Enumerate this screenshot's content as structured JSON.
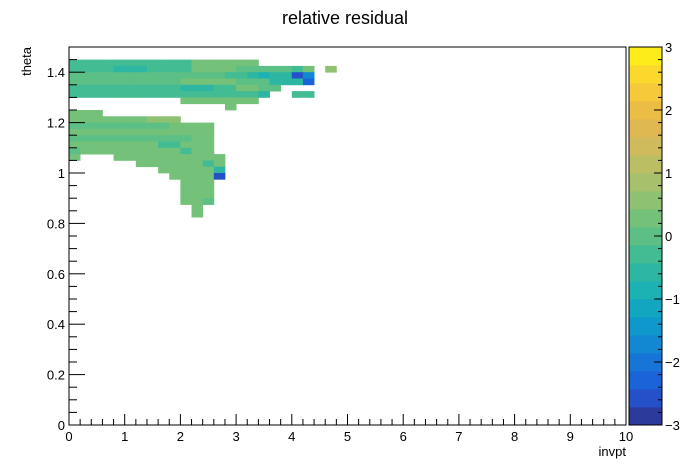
{
  "chart_data": {
    "type": "heatmap",
    "title": "relative residual",
    "xlabel": "invpt",
    "ylabel": "theta",
    "xlim": [
      0,
      10
    ],
    "ylim": [
      0,
      1.5
    ],
    "x_ticks": [
      0,
      1,
      2,
      3,
      4,
      5,
      6,
      7,
      8,
      9,
      10
    ],
    "x_tick_labels": [
      "0",
      "1",
      "2",
      "3",
      "4",
      "5",
      "6",
      "7",
      "8",
      "9",
      "10"
    ],
    "y_ticks": [
      0,
      0.2,
      0.4,
      0.6,
      0.8,
      1.0,
      1.2,
      1.4
    ],
    "y_tick_labels": [
      "0",
      "0.2",
      "0.4",
      "0.6",
      "0.8",
      "1",
      "1.2",
      "1.4"
    ],
    "colorbar": {
      "range": [
        -3,
        3
      ],
      "ticks": [
        -3,
        -2,
        -1,
        0,
        1,
        2,
        3
      ],
      "tick_labels": [
        "−3",
        "−2",
        "−1",
        "0",
        "1",
        "2",
        "3"
      ],
      "palette": [
        "#2c3a9c",
        "#2450c8",
        "#1a63d8",
        "#1675d6",
        "#1288d2",
        "#0f98cb",
        "#12a6c1",
        "#1cb1b3",
        "#2db7a3",
        "#43bc93",
        "#5cbf85",
        "#74c17a",
        "#8ec172",
        "#a6c06b",
        "#bcbe64",
        "#cfba5c",
        "#e0b852",
        "#ecbd45",
        "#f5c93a",
        "#fad92c",
        "#fdec1a"
      ]
    },
    "bin_size": {
      "x": 0.2,
      "y": 0.025
    },
    "cells": [
      [
        0.0,
        1.425,
        -0.2
      ],
      [
        0.2,
        1.425,
        -0.2
      ],
      [
        0.4,
        1.425,
        -0.2
      ],
      [
        0.6,
        1.425,
        -0.2
      ],
      [
        0.8,
        1.425,
        -0.2
      ],
      [
        1.0,
        1.425,
        -0.2
      ],
      [
        1.2,
        1.425,
        -0.2
      ],
      [
        1.4,
        1.425,
        -0.2
      ],
      [
        1.6,
        1.425,
        -0.2
      ],
      [
        1.8,
        1.425,
        -0.2
      ],
      [
        2.0,
        1.425,
        -0.2
      ],
      [
        2.2,
        1.425,
        0.2
      ],
      [
        2.4,
        1.425,
        0.2
      ],
      [
        2.6,
        1.425,
        0.2
      ],
      [
        2.8,
        1.425,
        0.2
      ],
      [
        3.0,
        1.425,
        0.2
      ],
      [
        3.2,
        1.425,
        0.2
      ],
      [
        0.0,
        1.4,
        -0.2
      ],
      [
        0.2,
        1.4,
        -0.4
      ],
      [
        0.4,
        1.4,
        -0.4
      ],
      [
        0.6,
        1.4,
        -0.4
      ],
      [
        0.8,
        1.4,
        -0.5
      ],
      [
        1.0,
        1.4,
        -0.5
      ],
      [
        1.2,
        1.4,
        -0.6
      ],
      [
        1.4,
        1.4,
        -0.3
      ],
      [
        1.6,
        1.4,
        -0.2
      ],
      [
        1.8,
        1.4,
        -0.2
      ],
      [
        2.0,
        1.4,
        -0.2
      ],
      [
        2.2,
        1.4,
        0.2
      ],
      [
        2.4,
        1.4,
        0.2
      ],
      [
        2.6,
        1.4,
        0.2
      ],
      [
        2.8,
        1.4,
        0.2
      ],
      [
        3.0,
        1.4,
        0.0
      ],
      [
        3.2,
        1.4,
        0.0
      ],
      [
        3.4,
        1.4,
        0.0
      ],
      [
        3.6,
        1.4,
        0.0
      ],
      [
        3.8,
        1.4,
        0.0
      ],
      [
        4.0,
        1.4,
        -0.3
      ],
      [
        4.2,
        1.4,
        0.3
      ],
      [
        4.6,
        1.4,
        0.7
      ],
      [
        0.0,
        1.375,
        -0.1
      ],
      [
        0.2,
        1.375,
        -0.1
      ],
      [
        0.4,
        1.375,
        -0.1
      ],
      [
        0.6,
        1.375,
        -0.1
      ],
      [
        0.8,
        1.375,
        -0.1
      ],
      [
        1.0,
        1.375,
        -0.1
      ],
      [
        1.2,
        1.375,
        -0.1
      ],
      [
        1.4,
        1.375,
        -0.1
      ],
      [
        1.6,
        1.375,
        -0.1
      ],
      [
        1.8,
        1.375,
        -0.1
      ],
      [
        2.0,
        1.375,
        -0.1
      ],
      [
        2.2,
        1.375,
        -0.1
      ],
      [
        2.4,
        1.375,
        -0.1
      ],
      [
        2.6,
        1.375,
        -0.1
      ],
      [
        2.8,
        1.375,
        -0.3
      ],
      [
        3.0,
        1.375,
        -0.3
      ],
      [
        3.2,
        1.375,
        -0.6
      ],
      [
        3.4,
        1.375,
        -0.8
      ],
      [
        3.6,
        1.375,
        -0.6
      ],
      [
        3.8,
        1.375,
        -0.6
      ],
      [
        4.0,
        1.375,
        -2.7
      ],
      [
        4.2,
        1.375,
        -1.8
      ],
      [
        0.0,
        1.35,
        0.1
      ],
      [
        0.2,
        1.35,
        0.1
      ],
      [
        0.4,
        1.35,
        0.1
      ],
      [
        0.6,
        1.35,
        0.1
      ],
      [
        0.8,
        1.35,
        0.1
      ],
      [
        1.0,
        1.35,
        0.1
      ],
      [
        1.2,
        1.35,
        0.1
      ],
      [
        1.4,
        1.35,
        0.1
      ],
      [
        1.6,
        1.35,
        0.1
      ],
      [
        1.8,
        1.35,
        0.1
      ],
      [
        2.0,
        1.35,
        0.3
      ],
      [
        2.2,
        1.35,
        0.3
      ],
      [
        2.4,
        1.35,
        0.3
      ],
      [
        2.6,
        1.35,
        0.3
      ],
      [
        2.8,
        1.35,
        0.3
      ],
      [
        3.0,
        1.35,
        0.0
      ],
      [
        3.2,
        1.35,
        0.0
      ],
      [
        3.4,
        1.35,
        0.0
      ],
      [
        3.6,
        1.35,
        -0.6
      ],
      [
        3.8,
        1.35,
        -0.6
      ],
      [
        4.0,
        1.35,
        -0.6
      ],
      [
        4.2,
        1.35,
        -2.4
      ],
      [
        0.0,
        1.325,
        -0.3
      ],
      [
        0.2,
        1.325,
        -0.3
      ],
      [
        0.4,
        1.325,
        -0.3
      ],
      [
        0.6,
        1.325,
        -0.3
      ],
      [
        0.8,
        1.325,
        -0.3
      ],
      [
        1.0,
        1.325,
        -0.3
      ],
      [
        1.2,
        1.325,
        -0.3
      ],
      [
        1.4,
        1.325,
        -0.3
      ],
      [
        1.6,
        1.325,
        -0.3
      ],
      [
        1.8,
        1.325,
        -0.3
      ],
      [
        2.0,
        1.325,
        -0.5
      ],
      [
        2.2,
        1.325,
        -0.5
      ],
      [
        2.4,
        1.325,
        -0.5
      ],
      [
        2.6,
        1.325,
        -0.3
      ],
      [
        2.8,
        1.325,
        -0.3
      ],
      [
        3.0,
        1.325,
        0.2
      ],
      [
        3.2,
        1.325,
        0.2
      ],
      [
        3.4,
        1.325,
        0.0
      ],
      [
        3.6,
        1.325,
        0.0
      ],
      [
        0.0,
        1.3,
        -0.2
      ],
      [
        0.2,
        1.3,
        -0.2
      ],
      [
        0.4,
        1.3,
        -0.2
      ],
      [
        0.6,
        1.3,
        -0.2
      ],
      [
        0.8,
        1.3,
        -0.2
      ],
      [
        1.0,
        1.3,
        -0.2
      ],
      [
        1.2,
        1.3,
        -0.2
      ],
      [
        1.4,
        1.3,
        -0.2
      ],
      [
        1.6,
        1.3,
        -0.2
      ],
      [
        1.8,
        1.3,
        -0.2
      ],
      [
        2.0,
        1.3,
        -0.2
      ],
      [
        2.2,
        1.3,
        -0.2
      ],
      [
        2.4,
        1.3,
        -0.2
      ],
      [
        2.6,
        1.3,
        -0.2
      ],
      [
        2.8,
        1.3,
        -0.2
      ],
      [
        3.0,
        1.3,
        -0.2
      ],
      [
        3.2,
        1.3,
        -0.2
      ],
      [
        3.4,
        1.3,
        -0.5
      ],
      [
        4.0,
        1.3,
        -0.2
      ],
      [
        4.2,
        1.3,
        -0.2
      ],
      [
        2.0,
        1.275,
        0.3
      ],
      [
        2.2,
        1.275,
        0.3
      ],
      [
        2.4,
        1.275,
        0.3
      ],
      [
        2.6,
        1.275,
        0.3
      ],
      [
        2.8,
        1.275,
        0.3
      ],
      [
        3.0,
        1.275,
        0.3
      ],
      [
        3.2,
        1.275,
        0.3
      ],
      [
        2.8,
        1.25,
        0.2
      ],
      [
        0.0,
        1.225,
        0.3
      ],
      [
        0.2,
        1.225,
        0.3
      ],
      [
        0.4,
        1.225,
        0.3
      ],
      [
        0.0,
        1.2,
        0.4
      ],
      [
        0.2,
        1.2,
        0.4
      ],
      [
        0.4,
        1.2,
        0.4
      ],
      [
        0.6,
        1.2,
        0.4
      ],
      [
        0.8,
        1.2,
        0.4
      ],
      [
        1.0,
        1.2,
        0.4
      ],
      [
        1.2,
        1.2,
        0.4
      ],
      [
        1.4,
        1.2,
        0.5
      ],
      [
        1.6,
        1.2,
        0.5
      ],
      [
        1.8,
        1.2,
        0.5
      ],
      [
        0.0,
        1.175,
        0.1
      ],
      [
        0.2,
        1.175,
        0.1
      ],
      [
        0.4,
        1.175,
        0.1
      ],
      [
        0.6,
        1.175,
        0.1
      ],
      [
        0.8,
        1.175,
        0.1
      ],
      [
        1.0,
        1.175,
        0.1
      ],
      [
        1.2,
        1.175,
        0.1
      ],
      [
        1.4,
        1.175,
        0.1
      ],
      [
        1.6,
        1.175,
        0.1
      ],
      [
        1.8,
        1.175,
        0.4
      ],
      [
        2.0,
        1.175,
        0.4
      ],
      [
        2.2,
        1.175,
        0.4
      ],
      [
        2.4,
        1.175,
        0.4
      ],
      [
        0.0,
        1.15,
        0.3
      ],
      [
        0.2,
        1.15,
        0.3
      ],
      [
        0.4,
        1.15,
        0.3
      ],
      [
        0.6,
        1.15,
        0.3
      ],
      [
        0.8,
        1.15,
        0.3
      ],
      [
        1.0,
        1.15,
        0.3
      ],
      [
        1.2,
        1.15,
        0.3
      ],
      [
        1.4,
        1.15,
        0.3
      ],
      [
        1.6,
        1.15,
        0.3
      ],
      [
        1.8,
        1.15,
        0.3
      ],
      [
        2.0,
        1.15,
        0.3
      ],
      [
        2.2,
        1.15,
        0.3
      ],
      [
        2.4,
        1.15,
        0.4
      ],
      [
        0.0,
        1.125,
        -0.1
      ],
      [
        0.2,
        1.125,
        -0.1
      ],
      [
        0.4,
        1.125,
        -0.1
      ],
      [
        0.6,
        1.125,
        -0.1
      ],
      [
        0.8,
        1.125,
        -0.1
      ],
      [
        1.0,
        1.125,
        -0.1
      ],
      [
        1.2,
        1.125,
        -0.1
      ],
      [
        1.4,
        1.125,
        -0.1
      ],
      [
        1.6,
        1.125,
        -0.1
      ],
      [
        1.8,
        1.125,
        -0.1
      ],
      [
        2.0,
        1.125,
        -0.1
      ],
      [
        2.2,
        1.125,
        0.2
      ],
      [
        2.4,
        1.125,
        0.2
      ],
      [
        0.0,
        1.1,
        0.4
      ],
      [
        0.2,
        1.1,
        0.4
      ],
      [
        0.4,
        1.1,
        0.4
      ],
      [
        0.6,
        1.1,
        0.4
      ],
      [
        0.8,
        1.1,
        0.4
      ],
      [
        1.0,
        1.1,
        0.4
      ],
      [
        1.2,
        1.1,
        0.4
      ],
      [
        1.4,
        1.1,
        0.4
      ],
      [
        1.6,
        1.1,
        -0.2
      ],
      [
        1.8,
        1.1,
        -0.2
      ],
      [
        2.0,
        1.1,
        0.4
      ],
      [
        2.2,
        1.1,
        0.4
      ],
      [
        2.4,
        1.1,
        0.4
      ],
      [
        0.0,
        1.075,
        -0.1
      ],
      [
        0.2,
        1.075,
        0.2
      ],
      [
        0.4,
        1.075,
        0.2
      ],
      [
        0.6,
        1.075,
        0.2
      ],
      [
        0.8,
        1.075,
        0.2
      ],
      [
        1.0,
        1.075,
        0.2
      ],
      [
        1.2,
        1.075,
        0.2
      ],
      [
        1.4,
        1.075,
        0.2
      ],
      [
        1.6,
        1.075,
        0.2
      ],
      [
        1.8,
        1.075,
        0.2
      ],
      [
        2.0,
        1.075,
        -0.2
      ],
      [
        2.2,
        1.075,
        0.2
      ],
      [
        2.4,
        1.075,
        0.2
      ],
      [
        0.0,
        1.05,
        0.2
      ],
      [
        0.8,
        1.05,
        0.4
      ],
      [
        1.0,
        1.05,
        0.4
      ],
      [
        1.2,
        1.05,
        0.4
      ],
      [
        1.4,
        1.05,
        0.4
      ],
      [
        1.6,
        1.05,
        0.2
      ],
      [
        1.8,
        1.05,
        0.2
      ],
      [
        2.0,
        1.05,
        0.2
      ],
      [
        2.2,
        1.05,
        0.2
      ],
      [
        2.4,
        1.05,
        0.2
      ],
      [
        2.6,
        1.05,
        0.4
      ],
      [
        1.2,
        1.025,
        0.4
      ],
      [
        1.4,
        1.025,
        0.4
      ],
      [
        1.6,
        1.025,
        0.4
      ],
      [
        1.8,
        1.025,
        0.4
      ],
      [
        2.0,
        1.025,
        0.2
      ],
      [
        2.2,
        1.025,
        0.2
      ],
      [
        2.4,
        1.025,
        -0.4
      ],
      [
        2.6,
        1.025,
        0.4
      ],
      [
        1.6,
        1.0,
        0.4
      ],
      [
        1.8,
        1.0,
        0.4
      ],
      [
        2.0,
        1.0,
        0.4
      ],
      [
        2.2,
        1.0,
        0.4
      ],
      [
        2.4,
        1.0,
        0.2
      ],
      [
        2.6,
        1.0,
        -0.6
      ],
      [
        1.8,
        0.975,
        0.4
      ],
      [
        2.0,
        0.975,
        0.4
      ],
      [
        2.2,
        0.975,
        0.4
      ],
      [
        2.4,
        0.975,
        0.4
      ],
      [
        2.6,
        0.975,
        -2.6
      ],
      [
        2.0,
        0.95,
        0.4
      ],
      [
        2.2,
        0.95,
        0.4
      ],
      [
        2.4,
        0.95,
        0.2
      ],
      [
        2.0,
        0.925,
        0.4
      ],
      [
        2.2,
        0.925,
        0.4
      ],
      [
        2.4,
        0.925,
        0.2
      ],
      [
        2.0,
        0.9,
        0.4
      ],
      [
        2.2,
        0.9,
        0.4
      ],
      [
        2.4,
        0.9,
        0.2
      ],
      [
        2.0,
        0.875,
        0.4
      ],
      [
        2.2,
        0.875,
        0.4
      ],
      [
        2.4,
        0.875,
        0.1
      ],
      [
        2.2,
        0.85,
        0.4
      ],
      [
        2.2,
        0.825,
        0.3
      ]
    ]
  }
}
